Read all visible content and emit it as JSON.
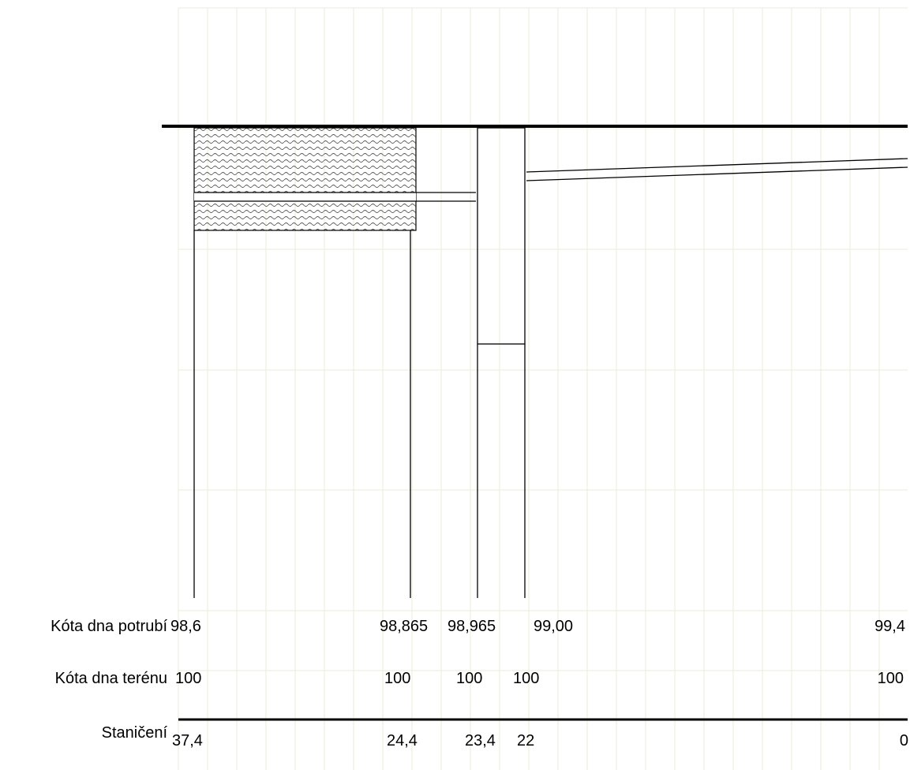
{
  "row_labels": {
    "pipe_invert": "Kóta dna potrubí",
    "terrain": "Kóta dna terénu",
    "stationing": "Staničení"
  },
  "stations": [
    {
      "id": "s1",
      "pipe_invert": "98,6",
      "terrain": "100",
      "stationing": "37,4"
    },
    {
      "id": "s2",
      "pipe_invert": "98,865",
      "terrain": "100",
      "stationing": "24,4"
    },
    {
      "id": "s3",
      "pipe_invert": "98,965",
      "terrain": "100",
      "stationing": "23,4"
    },
    {
      "id": "s4",
      "pipe_invert": "99,00",
      "terrain": "100",
      "stationing": "22"
    },
    {
      "id": "s5",
      "pipe_invert": "99,4",
      "terrain": "100",
      "stationing": "0"
    }
  ],
  "colors": {
    "grid": "#ecebd7",
    "ink": "#000000",
    "hatch": "#555555"
  }
}
